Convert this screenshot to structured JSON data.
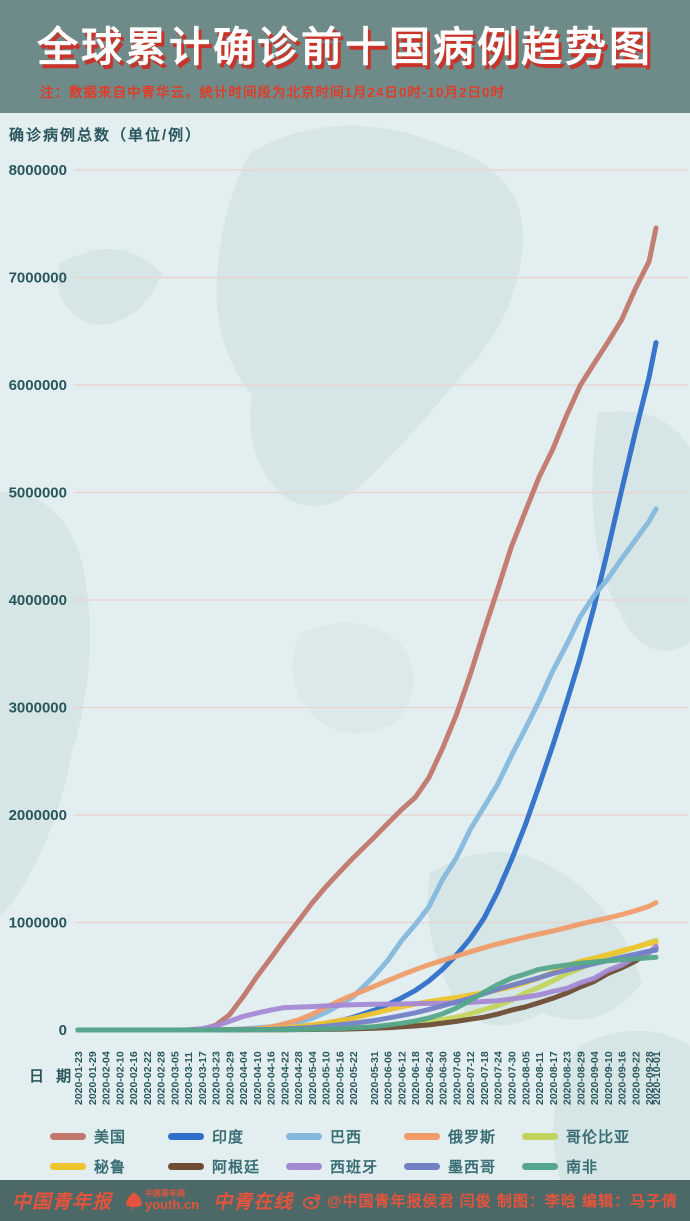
{
  "colors": {
    "header_bg": "#6f8b89",
    "chart_bg": "#e3eef0",
    "footer_bg": "#4d6967",
    "accent_red": "#df3d2a",
    "title_shadow": "#c9342a",
    "grid": "#ecd2cc",
    "axis_text": "#2a565e",
    "map": "#cfe0e0",
    "legend_text": "#3a6e74"
  },
  "header": {
    "title": "全球累计确诊前十国病例趋势图",
    "note": "注：数据来自中青华云，统计时间段为北京时间1月24日0时-10月2日0时"
  },
  "chart": {
    "y_axis_label": "确诊病例总数（单位/例）",
    "x_axis_label": "日 期",
    "y_ticks": [
      "8000000",
      "7000000",
      "6000000",
      "5000000",
      "4000000",
      "3000000",
      "2000000",
      "1000000",
      "0"
    ]
  },
  "chart_data": {
    "type": "line",
    "title": "全球累计确诊前十国病例趋势图",
    "xlabel": "日期",
    "ylabel": "确诊病例总数（单位/例）",
    "ylim": [
      0,
      8000000
    ],
    "grid": true,
    "legend_position": "bottom",
    "x": [
      "2020-01-23",
      "2020-01-29",
      "2020-02-04",
      "2020-02-10",
      "2020-02-16",
      "2020-02-22",
      "2020-02-28",
      "2020-03-05",
      "2020-03-11",
      "2020-03-17",
      "2020-03-23",
      "2020-03-29",
      "2020-04-04",
      "2020-04-10",
      "2020-04-16",
      "2020-04-22",
      "2020-04-28",
      "2020-05-04",
      "2020-05-10",
      "2020-05-16",
      "2020-05-22",
      "2020-05-31",
      "2020-06-06",
      "2020-06-12",
      "2020-06-18",
      "2020-06-24",
      "2020-06-30",
      "2020-07-06",
      "2020-07-12",
      "2020-07-18",
      "2020-07-24",
      "2020-07-30",
      "2020-08-05",
      "2020-08-11",
      "2020-08-17",
      "2020-08-23",
      "2020-08-29",
      "2020-09-04",
      "2020-09-10",
      "2020-09-16",
      "2020-09-22",
      "2020-09-28",
      "2020-10-01"
    ],
    "series": [
      {
        "name": "美国",
        "color": "#c1776b",
        "values": [
          1,
          5,
          11,
          12,
          15,
          35,
          60,
          220,
          1300,
          6400,
          43800,
          140900,
          308850,
          496530,
          667800,
          842600,
          1010500,
          1180000,
          1329800,
          1467800,
          1600500,
          1790200,
          1920000,
          2048000,
          2163000,
          2347000,
          2624000,
          2936000,
          3304900,
          3711400,
          4100000,
          4498000,
          4823000,
          5141000,
          5403000,
          5715000,
          5997000,
          6200000,
          6397000,
          6606000,
          6897000,
          7150000,
          7460000
        ]
      },
      {
        "name": "印度",
        "color": "#2e6fc8",
        "values": [
          0,
          1,
          3,
          3,
          3,
          3,
          3,
          30,
          62,
          140,
          500,
          1000,
          3100,
          7600,
          12800,
          21400,
          31300,
          42500,
          62900,
          85900,
          118400,
          182100,
          236700,
          297500,
          366900,
          456200,
          566800,
          697400,
          849500,
          1038700,
          1287900,
          1581900,
          1906600,
          2268600,
          2647700,
          3044900,
          3463900,
          3936700,
          4465000,
          5020400,
          5562700,
          6074700,
          6394100
        ]
      },
      {
        "name": "巴西",
        "color": "#85b8dd",
        "values": [
          0,
          0,
          0,
          0,
          0,
          0,
          2,
          8,
          52,
          291,
          1924,
          4256,
          10278,
          19638,
          28912,
          45757,
          71886,
          107780,
          162699,
          233142,
          310087,
          498440,
          645771,
          828810,
          978142,
          1145906,
          1402041,
          1603055,
          1864681,
          2074860,
          2287475,
          2552265,
          2801921,
          3057470,
          3340197,
          3582362,
          3846153,
          4041638,
          4197889,
          4382263,
          4558040,
          4732309,
          4847092
        ]
      },
      {
        "name": "俄罗斯",
        "color": "#f09c69",
        "values": [
          0,
          0,
          0,
          0,
          0,
          0,
          0,
          4,
          20,
          114,
          438,
          1534,
          4731,
          11917,
          27938,
          57999,
          93558,
          145268,
          209688,
          272043,
          326448,
          405843,
          458689,
          511423,
          561091,
          606881,
          647849,
          687862,
          727162,
          765437,
          800849,
          832993,
          864948,
          892654,
          920719,
          951897,
          985346,
          1015105,
          1042836,
          1073849,
          1109595,
          1151438,
          1185231
        ]
      },
      {
        "name": "哥伦比亚",
        "color": "#c3d45c",
        "values": [
          0,
          0,
          0,
          0,
          0,
          0,
          0,
          0,
          1,
          65,
          277,
          702,
          1406,
          2473,
          3105,
          4149,
          5597,
          7668,
          10495,
          14216,
          18330,
          29383,
          36635,
          46858,
          60217,
          77313,
          97846,
          120281,
          150445,
          190700,
          226373,
          276055,
          345714,
          397623,
          456689,
          522138,
          572243,
          633321,
          694664,
          728590,
          770435,
          813056,
          835339
        ]
      },
      {
        "name": "秘鲁",
        "color": "#eec42d",
        "values": [
          0,
          0,
          0,
          0,
          0,
          0,
          0,
          0,
          11,
          117,
          395,
          671,
          1746,
          5897,
          12491,
          19250,
          31190,
          47372,
          65015,
          88541,
          108769,
          155671,
          187400,
          214788,
          240908,
          264689,
          285213,
          302718,
          326247,
          345537,
          371096,
          400683,
          439890,
          483133,
          535946,
          594326,
          639435,
          670145,
          702776,
          738020,
          768895,
          805302,
          814829
        ]
      },
      {
        "name": "阿根廷",
        "color": "#6e4c34",
        "values": [
          0,
          0,
          0,
          0,
          0,
          0,
          0,
          1,
          17,
          65,
          266,
          690,
          1451,
          1975,
          2571,
          3144,
          4127,
          4783,
          5776,
          7479,
          9931,
          16851,
          21037,
          28764,
          37510,
          47203,
          64530,
          80447,
          100166,
          119301,
          148027,
          185373,
          213535,
          253868,
          294569,
          342154,
          401239,
          451198,
          524198,
          577338,
          640147,
          723132,
          765002
        ]
      },
      {
        "name": "西班牙",
        "color": "#a489d4",
        "values": [
          0,
          0,
          1,
          2,
          2,
          2,
          32,
          259,
          2277,
          11748,
          35136,
          80110,
          126168,
          157053,
          184948,
          208389,
          212917,
          218011,
          224350,
          230698,
          234824,
          239429,
          241310,
          243209,
          245268,
          247086,
          249271,
          252130,
          256619,
          264836,
          272421,
          288522,
          305767,
          326612,
          359082,
          386054,
          439286,
          479554,
          554143,
          603167,
          682267,
          716481,
          778607
        ]
      },
      {
        "name": "墨西哥",
        "color": "#7380c6",
        "values": [
          0,
          0,
          0,
          0,
          0,
          0,
          4,
          5,
          8,
          93,
          367,
          848,
          1890,
          3844,
          5847,
          10544,
          16752,
          23471,
          35022,
          47144,
          62527,
          87512,
          110026,
          133974,
          159793,
          191410,
          226089,
          261750,
          295268,
          338913,
          378285,
          416179,
          449961,
          485836,
          525733,
          556216,
          585738,
          616894,
          647507,
          676487,
          705263,
          733717,
          743216
        ]
      },
      {
        "name": "南非",
        "color": "#55a68a",
        "values": [
          0,
          0,
          0,
          0,
          0,
          0,
          0,
          0,
          13,
          85,
          402,
          1280,
          1585,
          2028,
          2506,
          3635,
          4996,
          6783,
          10015,
          14355,
          19137,
          30967,
          45973,
          61927,
          83890,
          111796,
          151209,
          205721,
          276242,
          350879,
          421996,
          482169,
          521318,
          563598,
          587345,
          603338,
          622551,
          633015,
          644438,
          653444,
          663282,
          671669,
          676084
        ]
      }
    ]
  },
  "footer": {
    "logo_1": "中国青年报",
    "logo_2_name": "中国青年网",
    "logo_2_site": "youth.cn",
    "logo_3": "中青在线",
    "credit": "@中国青年报侯君 闫俊 制图：李晗 编辑：马子倩"
  }
}
